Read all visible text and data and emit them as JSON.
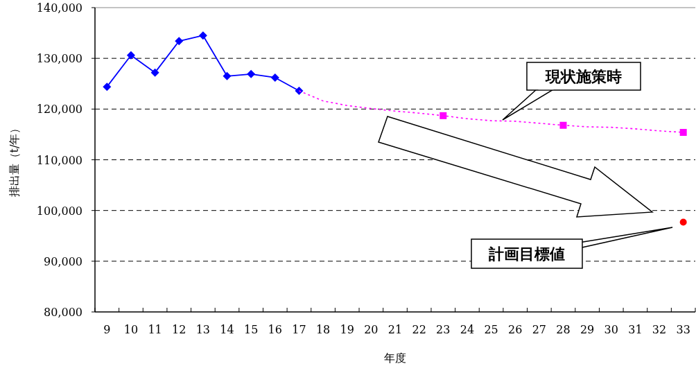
{
  "chart_data": {
    "type": "line",
    "xlabel": "年度",
    "ylabel": "排出量（t/年）",
    "categories": [
      "9",
      "10",
      "11",
      "12",
      "13",
      "14",
      "15",
      "16",
      "17",
      "18",
      "19",
      "20",
      "21",
      "22",
      "23",
      "24",
      "25",
      "26",
      "27",
      "28",
      "29",
      "30",
      "31",
      "32",
      "33"
    ],
    "ylim": [
      80000,
      140000
    ],
    "yticks": [
      {
        "value": 80000,
        "label": "80,000"
      },
      {
        "value": 90000,
        "label": "90,000"
      },
      {
        "value": 100000,
        "label": "100,000"
      },
      {
        "value": 110000,
        "label": "110,000"
      },
      {
        "value": 120000,
        "label": "120,000"
      },
      {
        "value": 130000,
        "label": "130,000"
      },
      {
        "value": 140000,
        "label": "140,000"
      }
    ],
    "grid": "y",
    "series": [
      {
        "type": "line",
        "color": "#0000ff",
        "marker": "diamond",
        "line_style": "solid",
        "values": [
          124400,
          130600,
          127200,
          133400,
          134500,
          126500,
          126900,
          126200,
          123600,
          null,
          null,
          null,
          null,
          null,
          null,
          null,
          null,
          null,
          null,
          null,
          null,
          null,
          null,
          null,
          null
        ]
      },
      {
        "type": "line",
        "color": "#ff00ff",
        "marker": "none",
        "line_style": "dotted",
        "values": [
          null,
          null,
          null,
          null,
          null,
          null,
          null,
          null,
          123600,
          121600,
          120700,
          120100,
          119600,
          119200,
          118700,
          118100,
          117700,
          117600,
          117200,
          116800,
          116500,
          116400,
          116100,
          115700,
          115400
        ]
      },
      {
        "type": "scatter",
        "color": "#ff00ff",
        "marker": "square",
        "x": [
          "23",
          "28",
          "33"
        ],
        "values": [
          118700,
          116800,
          115400
        ]
      },
      {
        "type": "scatter",
        "color": "#ff0000",
        "marker": "circle",
        "x": [
          "33"
        ],
        "values": [
          97700
        ]
      }
    ],
    "annotations": [
      "現状施策時",
      "計画目標値"
    ]
  }
}
